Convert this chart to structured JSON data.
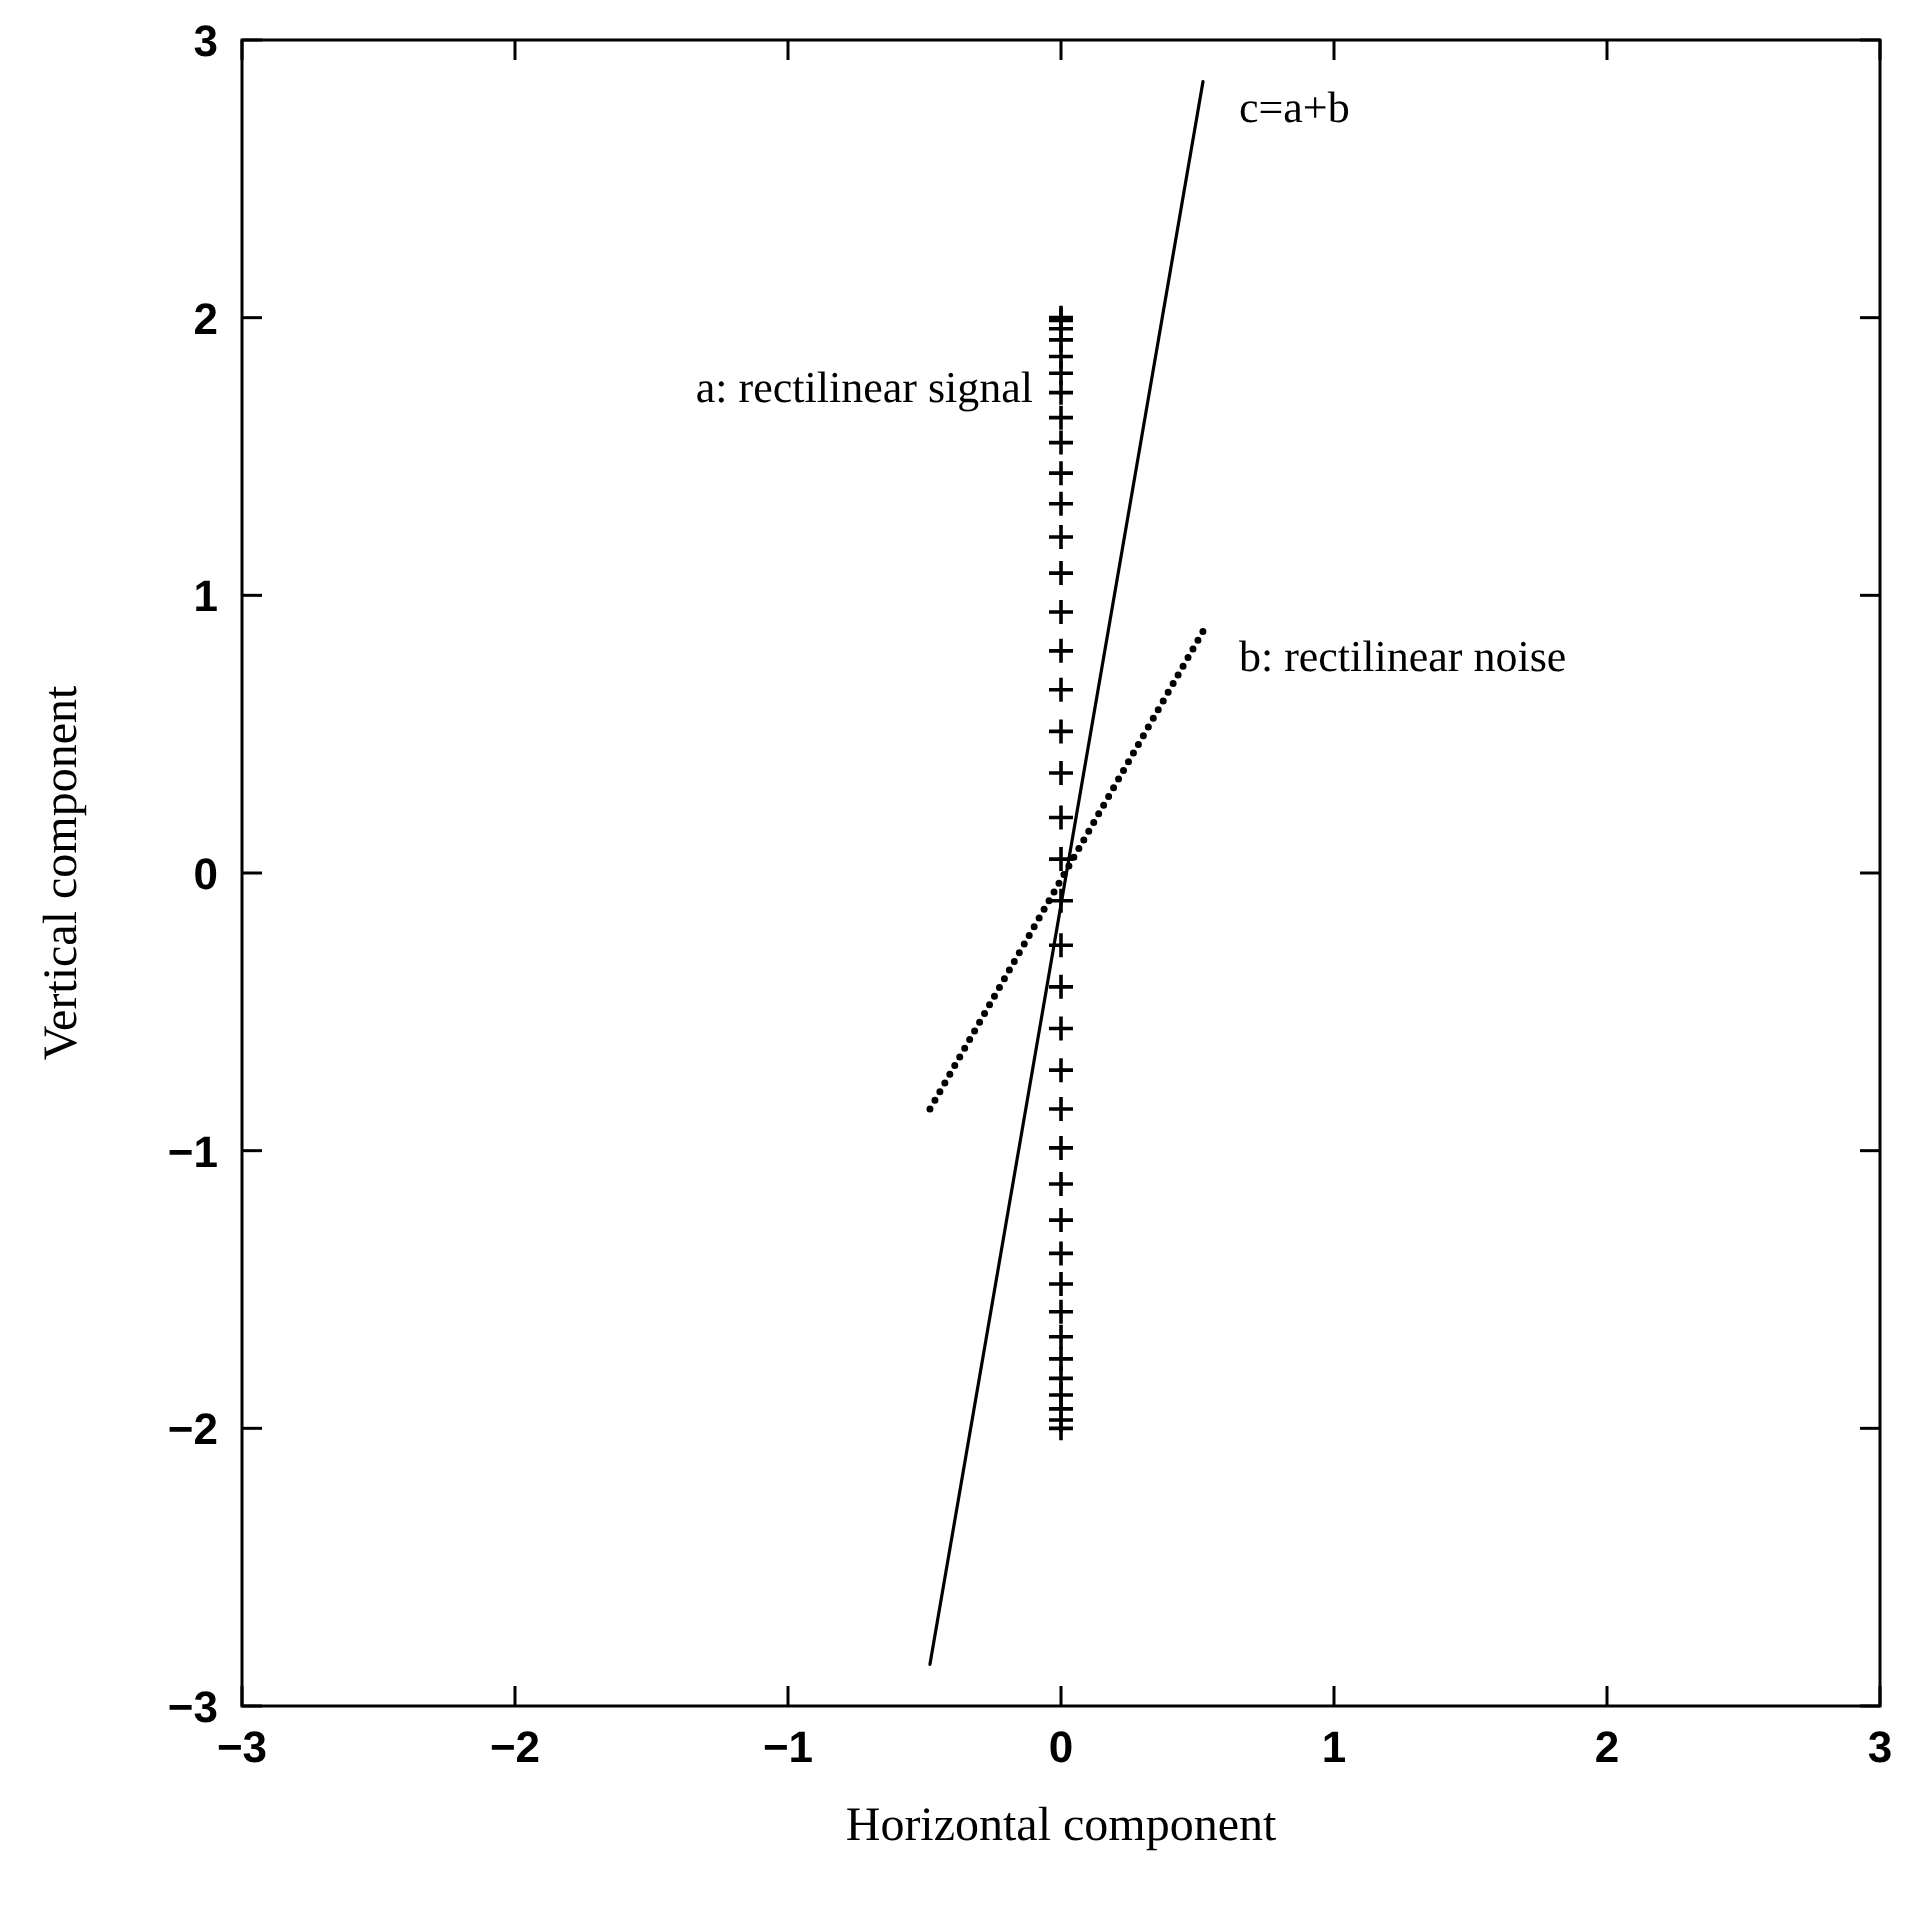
{
  "chart_data": {
    "type": "line",
    "xlabel": "Horizontal component",
    "ylabel": "Vertical component",
    "xlim": [
      -3,
      3
    ],
    "ylim": [
      -3,
      3
    ],
    "xticks": [
      -3,
      -2,
      -1,
      0,
      1,
      2,
      3
    ],
    "yticks": [
      -3,
      -2,
      -1,
      0,
      1,
      2,
      3
    ],
    "grid": false,
    "series": [
      {
        "name": "a: rectilinear signal",
        "type": "scatter",
        "marker": "cross",
        "color": "#000000",
        "x": [
          0,
          0,
          0,
          0,
          0,
          0,
          0,
          0,
          0,
          0,
          0,
          0,
          0,
          0,
          0,
          0,
          0,
          0,
          0,
          0,
          0,
          0,
          0,
          0,
          0,
          0,
          0,
          0,
          0,
          0,
          0,
          0,
          0,
          0,
          0,
          0,
          0,
          0,
          0
        ],
        "values": [
          -2,
          -1.97,
          -1.93,
          -1.88,
          -1.82,
          -1.75,
          -1.67,
          -1.58,
          -1.48,
          -1.37,
          -1.25,
          -1.12,
          -0.99,
          -0.85,
          -0.71,
          -0.56,
          -0.41,
          -0.26,
          -0.1,
          0.05,
          0.2,
          0.36,
          0.51,
          0.66,
          0.8,
          0.94,
          1.08,
          1.21,
          1.33,
          1.44,
          1.55,
          1.64,
          1.73,
          1.8,
          1.86,
          1.92,
          1.96,
          1.99,
          2
        ]
      },
      {
        "name": "b: rectilinear noise",
        "line_style": "dotted",
        "color": "#000000",
        "x": [
          -0.48,
          0.52
        ],
        "values": [
          -0.85,
          0.87
        ]
      },
      {
        "name": "c=a+b",
        "line_style": "solid",
        "color": "#000000",
        "x": [
          -0.48,
          0.52
        ],
        "values": [
          -2.85,
          2.85
        ]
      }
    ]
  }
}
